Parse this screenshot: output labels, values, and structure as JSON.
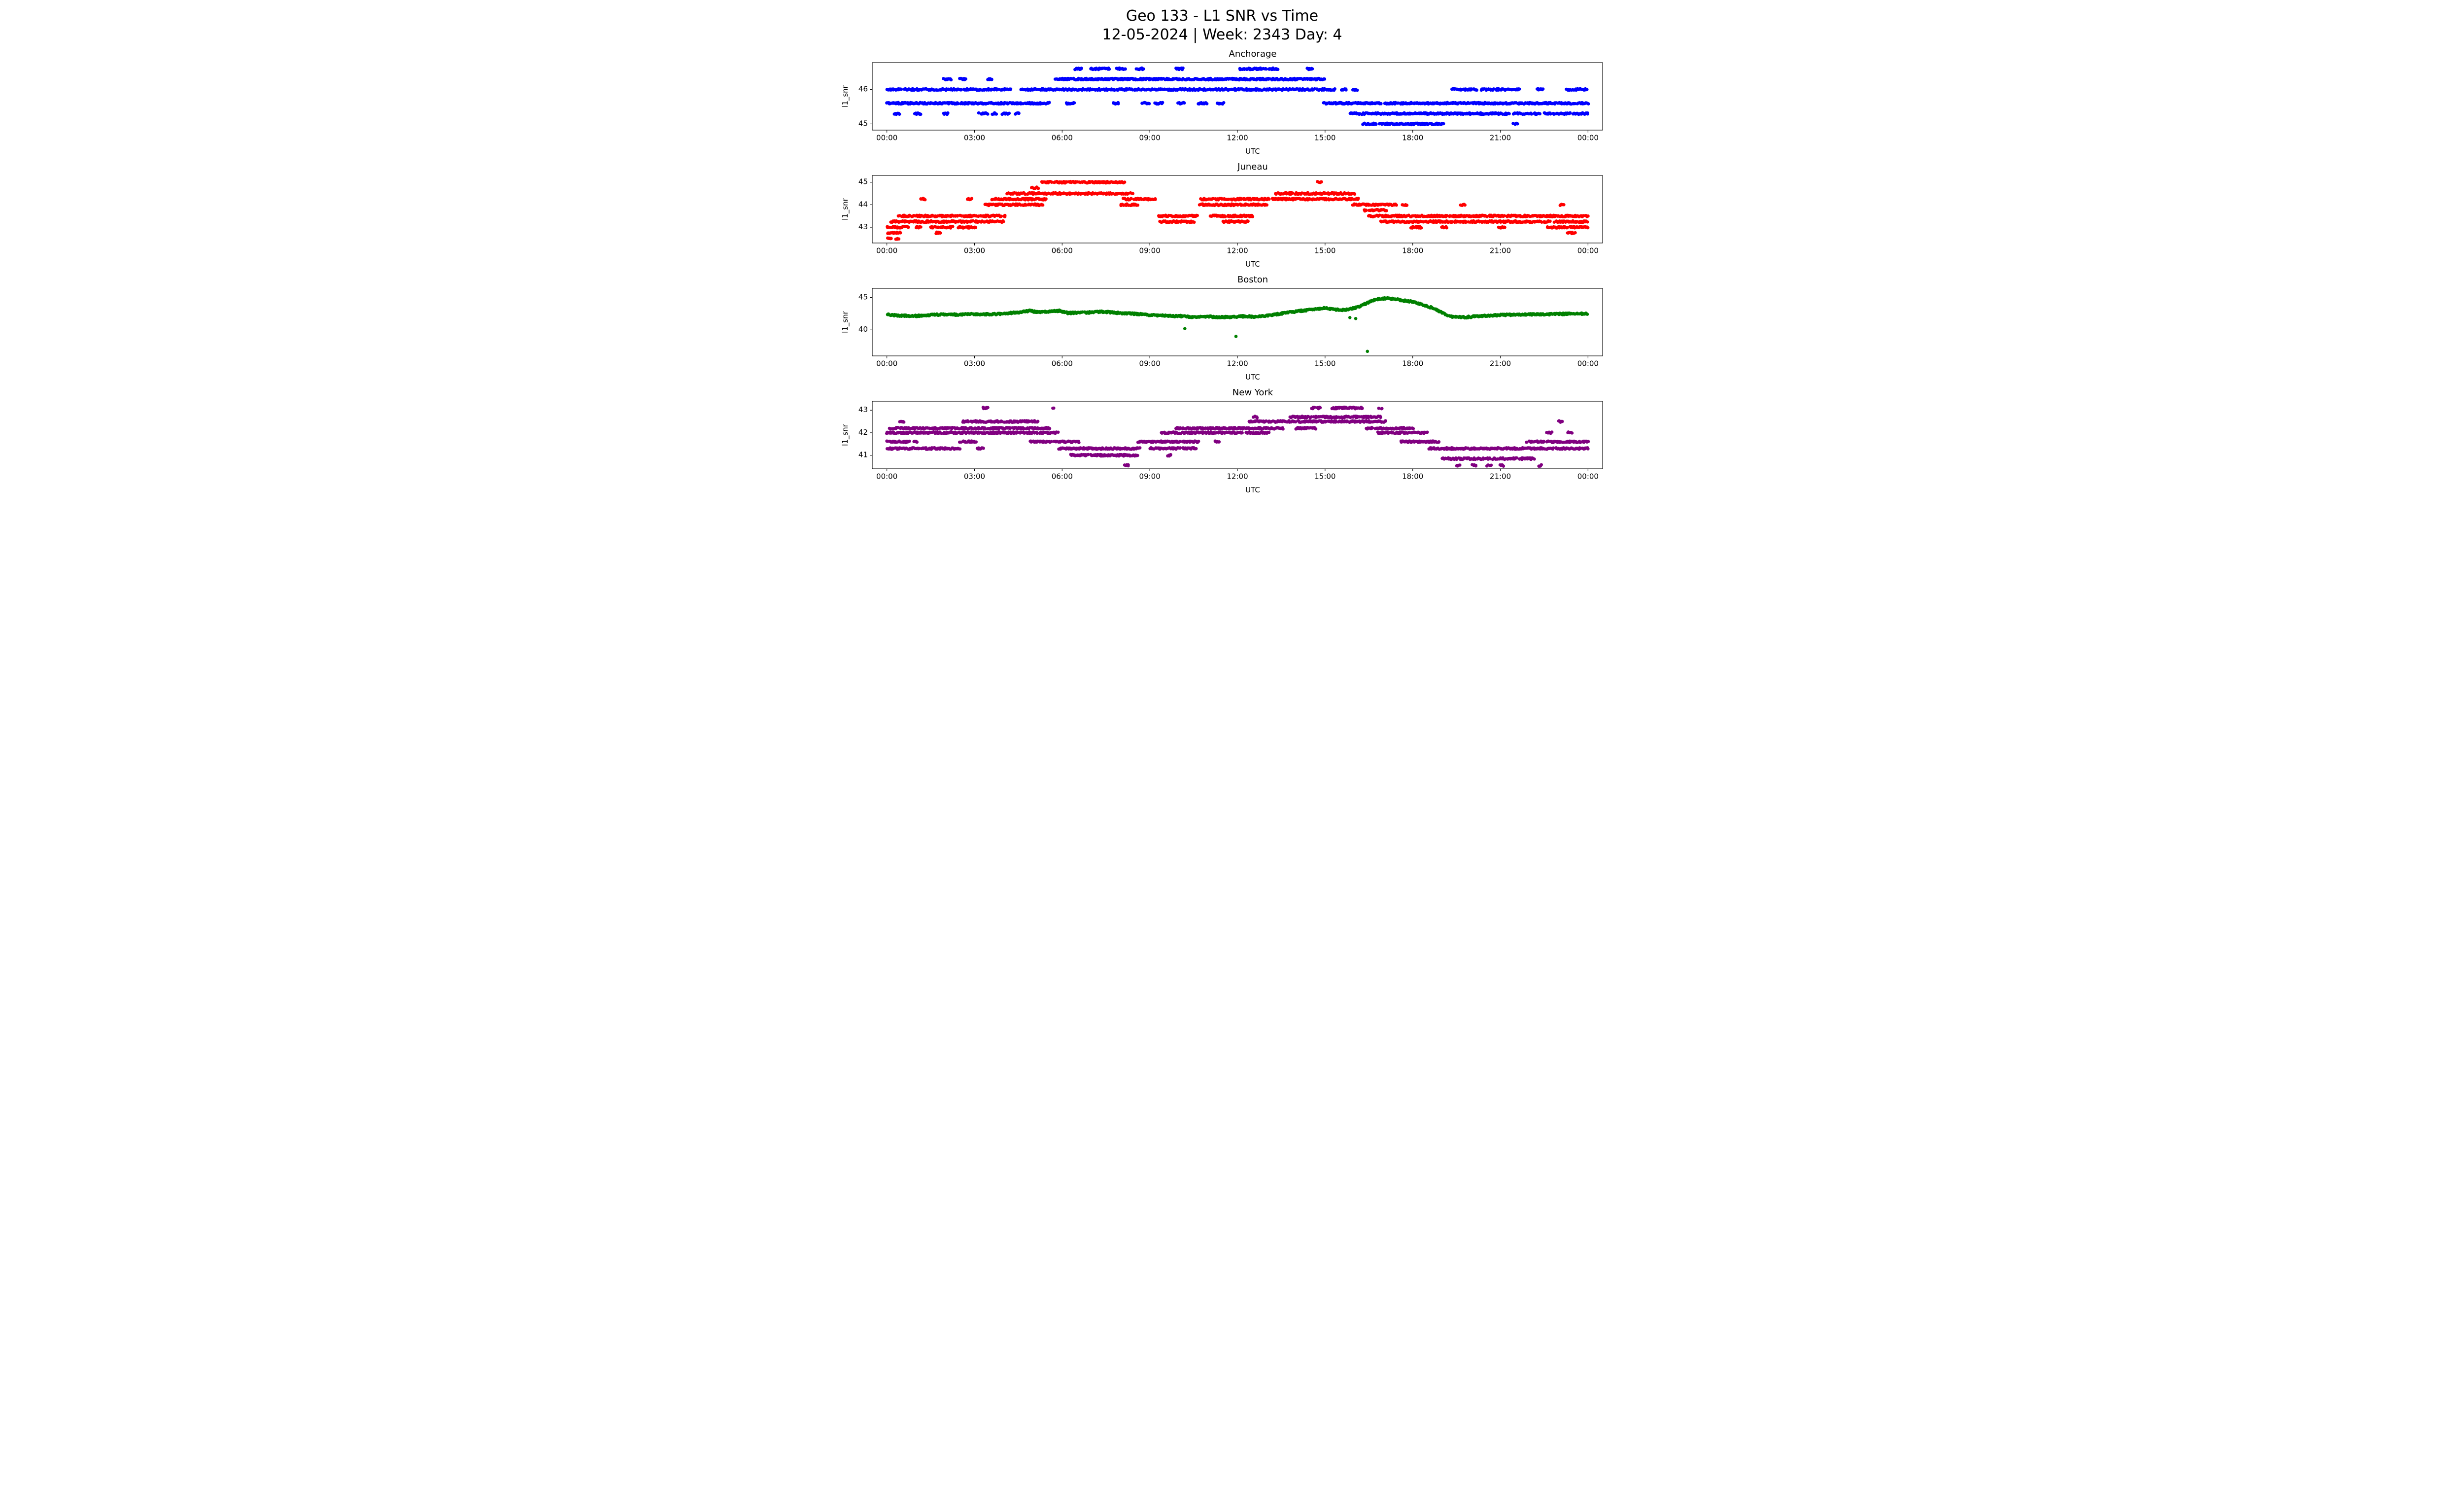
{
  "figure": {
    "title_line1": "Geo 133 - L1 SNR vs Time",
    "title_line2": "12-05-2024 | Week: 2343 Day: 4"
  },
  "chart_data": [
    {
      "type": "scatter",
      "title": "Anchorage",
      "color": "#0000ff",
      "xlabel": "UTC",
      "ylabel": "l1_snr",
      "xlim": [
        -0.5,
        24.5
      ],
      "ylim": [
        44.82,
        46.78
      ],
      "xticks": [
        0,
        3,
        6,
        9,
        12,
        15,
        18,
        21,
        24
      ],
      "xtick_labels": [
        "00:00",
        "03:00",
        "06:00",
        "09:00",
        "12:00",
        "15:00",
        "18:00",
        "21:00",
        "00:00"
      ],
      "yticks": [
        45,
        46
      ],
      "marker_size": 3.3,
      "band_jitter": 0.022,
      "bands": [
        {
          "y": 45.0,
          "segments": [
            [
              16.3,
              19.05
            ],
            [
              21.45,
              21.6
            ]
          ]
        },
        {
          "y": 45.3,
          "segments": [
            [
              0.25,
              0.45
            ],
            [
              0.95,
              1.15
            ],
            [
              1.95,
              2.1
            ],
            [
              3.15,
              3.45
            ],
            [
              3.6,
              3.75
            ],
            [
              3.95,
              4.2
            ],
            [
              4.4,
              4.55
            ],
            [
              15.85,
              21.3
            ],
            [
              21.45,
              22.35
            ],
            [
              22.5,
              24
            ]
          ]
        },
        {
          "y": 45.6,
          "segments": [
            [
              0.0,
              5.6
            ],
            [
              6.15,
              6.45
            ],
            [
              7.75,
              7.95
            ],
            [
              8.75,
              9.0
            ],
            [
              9.15,
              9.45
            ],
            [
              9.95,
              10.2
            ],
            [
              10.65,
              11.0
            ],
            [
              11.3,
              11.55
            ],
            [
              14.95,
              24
            ]
          ]
        },
        {
          "y": 46.0,
          "segments": [
            [
              0,
              4.25
            ],
            [
              4.55,
              15.35
            ],
            [
              15.55,
              15.75
            ],
            [
              15.95,
              16.1
            ],
            [
              19.35,
              20.2
            ],
            [
              20.35,
              21.65
            ],
            [
              22.25,
              22.45
            ],
            [
              23.25,
              24
            ]
          ]
        },
        {
          "y": 46.3,
          "segments": [
            [
              1.95,
              2.2
            ],
            [
              2.5,
              2.7
            ],
            [
              3.45,
              3.6
            ],
            [
              5.75,
              15.05
            ]
          ]
        },
        {
          "y": 46.6,
          "segments": [
            [
              6.45,
              6.7
            ],
            [
              6.95,
              7.65
            ],
            [
              7.85,
              8.2
            ],
            [
              8.55,
              8.8
            ],
            [
              9.9,
              10.15
            ],
            [
              12.05,
              13.4
            ],
            [
              14.35,
              14.6
            ]
          ]
        }
      ]
    },
    {
      "type": "scatter",
      "title": "Juneau",
      "color": "#ff0000",
      "xlabel": "UTC",
      "ylabel": "l1_snr",
      "xlim": [
        -0.5,
        24.5
      ],
      "ylim": [
        42.3,
        45.3
      ],
      "xticks": [
        0,
        3,
        6,
        9,
        12,
        15,
        18,
        21,
        24
      ],
      "xtick_labels": [
        "00:00",
        "03:00",
        "06:00",
        "09:00",
        "12:00",
        "15:00",
        "18:00",
        "21:00",
        "00:00"
      ],
      "yticks": [
        43,
        44,
        45
      ],
      "marker_size": 3.3,
      "band_jitter": 0.035,
      "bands": [
        {
          "y": 42.5,
          "segments": [
            [
              0.02,
              0.18
            ],
            [
              0.32,
              0.42
            ]
          ]
        },
        {
          "y": 42.75,
          "segments": [
            [
              0.0,
              0.5
            ],
            [
              1.68,
              1.85
            ],
            [
              23.3,
              23.55
            ]
          ]
        },
        {
          "y": 43.0,
          "segments": [
            [
              0.0,
              0.75
            ],
            [
              1.0,
              1.15
            ],
            [
              1.5,
              2.25
            ],
            [
              2.45,
              3.05
            ],
            [
              17.95,
              18.3
            ],
            [
              19.0,
              19.15
            ],
            [
              20.95,
              21.15
            ],
            [
              22.6,
              24
            ]
          ]
        },
        {
          "y": 43.25,
          "segments": [
            [
              0.15,
              4.0
            ],
            [
              9.35,
              10.55
            ],
            [
              11.5,
              12.4
            ],
            [
              16.9,
              22.7
            ],
            [
              22.85,
              24
            ]
          ]
        },
        {
          "y": 43.5,
          "segments": [
            [
              0.4,
              4.05
            ],
            [
              9.3,
              10.65
            ],
            [
              11.05,
              12.55
            ],
            [
              16.5,
              24
            ]
          ]
        },
        {
          "y": 43.75,
          "segments": [
            [
              16.35,
              17.1
            ]
          ]
        },
        {
          "y": 44.0,
          "segments": [
            [
              3.35,
              5.35
            ],
            [
              8.0,
              8.6
            ],
            [
              10.7,
              13.05
            ],
            [
              15.95,
              17.45
            ],
            [
              17.65,
              17.8
            ],
            [
              19.65,
              19.8
            ],
            [
              23.05,
              23.2
            ]
          ]
        },
        {
          "y": 44.25,
          "segments": [
            [
              1.15,
              1.3
            ],
            [
              2.75,
              2.9
            ],
            [
              3.6,
              5.5
            ],
            [
              8.1,
              9.25
            ],
            [
              10.75,
              13.1
            ],
            [
              13.2,
              16.2
            ]
          ]
        },
        {
          "y": 44.5,
          "segments": [
            [
              4.1,
              8.45
            ],
            [
              13.3,
              16.05
            ]
          ]
        },
        {
          "y": 44.75,
          "segments": [
            [
              4.95,
              5.2
            ]
          ]
        },
        {
          "y": 45.0,
          "segments": [
            [
              5.3,
              8.15
            ],
            [
              14.75,
              14.9
            ]
          ]
        }
      ]
    },
    {
      "type": "scatter",
      "title": "Boston",
      "color": "#008000",
      "xlabel": "UTC",
      "ylabel": "l1_snr",
      "xlim": [
        -0.5,
        24.5
      ],
      "ylim": [
        36.0,
        46.4
      ],
      "xticks": [
        0,
        3,
        6,
        9,
        12,
        15,
        18,
        21,
        24
      ],
      "xtick_labels": [
        "00:00",
        "03:00",
        "06:00",
        "09:00",
        "12:00",
        "15:00",
        "18:00",
        "21:00",
        "00:00"
      ],
      "yticks": [
        40,
        45
      ],
      "marker_size": 3.3,
      "band_jitter": 0.12,
      "curve": {
        "jitter": 0.12,
        "points": [
          [
            0,
            42.35
          ],
          [
            0.5,
            42.2
          ],
          [
            1,
            42.15
          ],
          [
            1.5,
            42.3
          ],
          [
            2,
            42.4
          ],
          [
            2.5,
            42.35
          ],
          [
            3,
            42.45
          ],
          [
            3.5,
            42.4
          ],
          [
            4,
            42.5
          ],
          [
            4.5,
            42.7
          ],
          [
            4.9,
            42.95
          ],
          [
            5.2,
            42.7
          ],
          [
            5.5,
            42.8
          ],
          [
            5.9,
            42.95
          ],
          [
            6.2,
            42.6
          ],
          [
            6.6,
            42.65
          ],
          [
            7,
            42.7
          ],
          [
            7.4,
            42.8
          ],
          [
            7.8,
            42.65
          ],
          [
            8.2,
            42.55
          ],
          [
            8.6,
            42.45
          ],
          [
            9,
            42.3
          ],
          [
            9.4,
            42.25
          ],
          [
            9.8,
            42.15
          ],
          [
            10.2,
            42.1
          ],
          [
            10.6,
            41.95
          ],
          [
            11,
            42.05
          ],
          [
            11.4,
            41.95
          ],
          [
            11.8,
            42.0
          ],
          [
            12.2,
            42.1
          ],
          [
            12.6,
            42.05
          ],
          [
            13,
            42.2
          ],
          [
            13.4,
            42.45
          ],
          [
            13.8,
            42.7
          ],
          [
            14.2,
            42.95
          ],
          [
            14.6,
            43.15
          ],
          [
            15,
            43.35
          ],
          [
            15.3,
            43.15
          ],
          [
            15.6,
            43.05
          ],
          [
            15.9,
            43.25
          ],
          [
            16.2,
            43.6
          ],
          [
            16.5,
            44.3
          ],
          [
            16.8,
            44.75
          ],
          [
            17.1,
            44.85
          ],
          [
            17.4,
            44.75
          ],
          [
            17.7,
            44.5
          ],
          [
            18,
            44.35
          ],
          [
            18.3,
            43.95
          ],
          [
            18.6,
            43.5
          ],
          [
            18.9,
            42.9
          ],
          [
            19.2,
            42.2
          ],
          [
            19.5,
            41.95
          ],
          [
            19.8,
            41.95
          ],
          [
            20.2,
            42.1
          ],
          [
            20.6,
            42.2
          ],
          [
            21,
            42.3
          ],
          [
            21.5,
            42.35
          ],
          [
            22,
            42.4
          ],
          [
            22.5,
            42.4
          ],
          [
            23,
            42.45
          ],
          [
            23.5,
            42.5
          ],
          [
            24,
            42.5
          ]
        ]
      },
      "outliers": [
        [
          10.2,
          40.2
        ],
        [
          11.95,
          39.0
        ],
        [
          16.45,
          36.7
        ],
        [
          15.85,
          41.9
        ],
        [
          16.05,
          41.75
        ]
      ]
    },
    {
      "type": "scatter",
      "title": "New York",
      "color": "#800080",
      "xlabel": "UTC",
      "ylabel": "l1_snr",
      "xlim": [
        -0.5,
        24.5
      ],
      "ylim": [
        40.4,
        43.4
      ],
      "xticks": [
        0,
        3,
        6,
        9,
        12,
        15,
        18,
        21,
        24
      ],
      "xtick_labels": [
        "00:00",
        "03:00",
        "06:00",
        "09:00",
        "12:00",
        "15:00",
        "18:00",
        "21:00",
        "00:00"
      ],
      "yticks": [
        41,
        42,
        43
      ],
      "marker_size": 3.3,
      "band_jitter": 0.035,
      "bands": [
        {
          "y": 40.55,
          "segments": [
            [
              8.15,
              8.3
            ],
            [
              19.5,
              19.62
            ],
            [
              20.05,
              20.18
            ],
            [
              20.55,
              20.68
            ],
            [
              21.0,
              21.12
            ],
            [
              22.3,
              22.42
            ]
          ]
        },
        {
          "y": 40.85,
          "segments": [
            [
              19.0,
              22.15
            ]
          ]
        },
        {
          "y": 41.0,
          "segments": [
            [
              6.3,
              8.6
            ],
            [
              9.6,
              9.75
            ]
          ]
        },
        {
          "y": 41.3,
          "segments": [
            [
              0.0,
              2.5
            ],
            [
              3.1,
              3.3
            ],
            [
              5.9,
              8.7
            ],
            [
              9.0,
              10.6
            ],
            [
              18.55,
              24
            ]
          ]
        },
        {
          "y": 41.6,
          "segments": [
            [
              0.0,
              1.05
            ],
            [
              2.5,
              3.05
            ],
            [
              4.9,
              6.6
            ],
            [
              8.6,
              10.7
            ],
            [
              11.2,
              11.4
            ],
            [
              17.6,
              18.9
            ],
            [
              21.9,
              24
            ]
          ]
        },
        {
          "y": 42.0,
          "segments": [
            [
              0.0,
              5.9
            ],
            [
              9.4,
              13.1
            ],
            [
              16.8,
              18.5
            ],
            [
              22.6,
              22.75
            ],
            [
              23.3,
              23.45
            ]
          ]
        },
        {
          "y": 42.2,
          "segments": [
            [
              0.1,
              5.6
            ],
            [
              9.9,
              13.6
            ],
            [
              14.0,
              14.7
            ],
            [
              16.4,
              18.05
            ]
          ]
        },
        {
          "y": 42.5,
          "segments": [
            [
              0.45,
              0.6
            ],
            [
              2.6,
              5.2
            ],
            [
              12.4,
              17.1
            ],
            [
              23.0,
              23.15
            ]
          ]
        },
        {
          "y": 42.7,
          "segments": [
            [
              12.55,
              12.7
            ],
            [
              13.8,
              16.9
            ]
          ]
        },
        {
          "y": 43.1,
          "segments": [
            [
              3.3,
              3.45
            ],
            [
              5.65,
              5.75
            ],
            [
              14.55,
              14.85
            ],
            [
              15.25,
              16.3
            ],
            [
              16.85,
              16.95
            ]
          ]
        }
      ]
    }
  ]
}
